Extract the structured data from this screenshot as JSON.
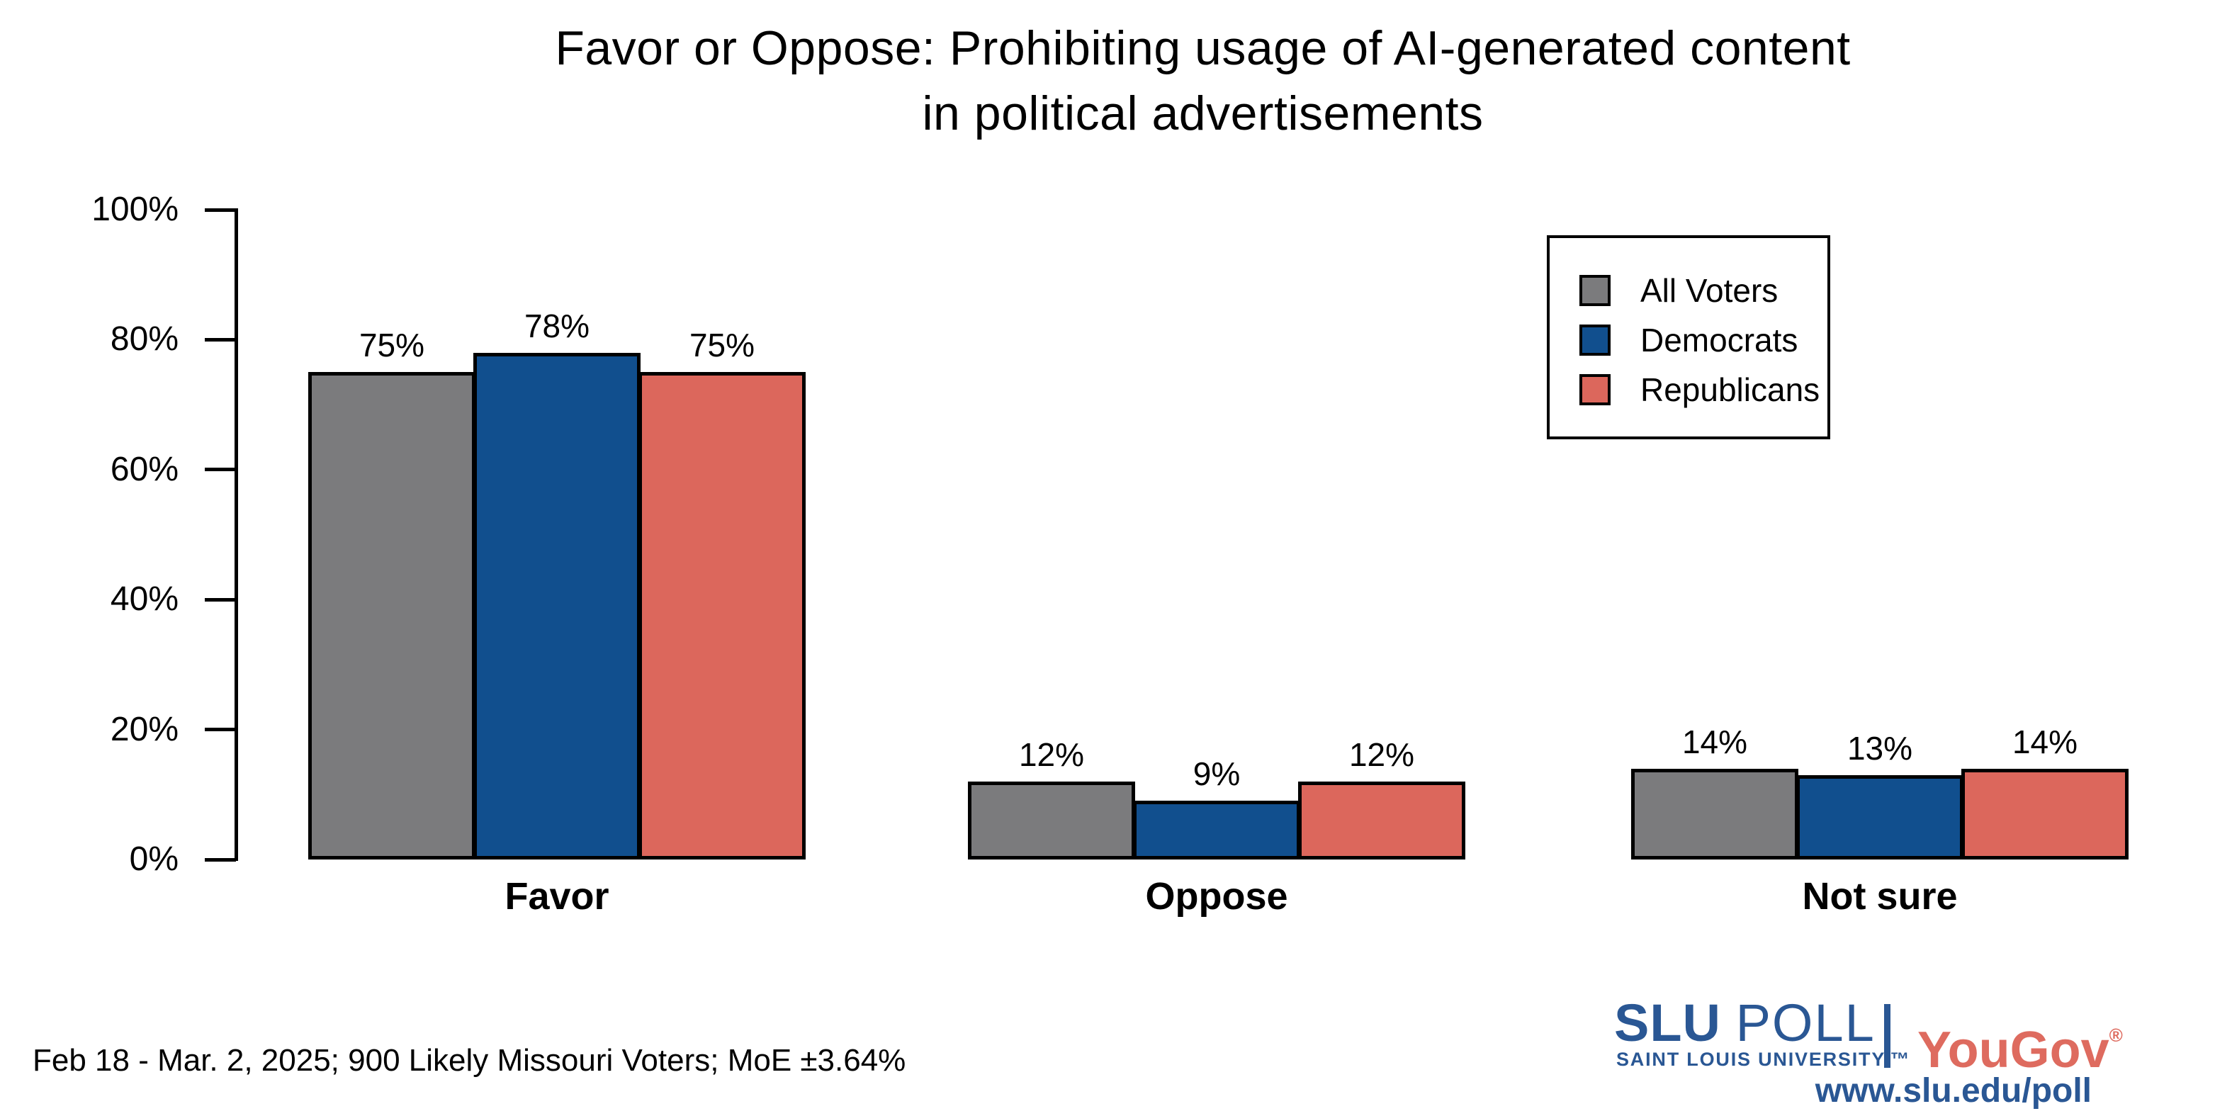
{
  "title": {
    "line1": "Favor or Oppose: Prohibiting usage of AI-generated content",
    "line2": "in political advertisements"
  },
  "chart_data": {
    "type": "bar",
    "categories": [
      "Favor",
      "Oppose",
      "Not sure"
    ],
    "series": [
      {
        "name": "All Voters",
        "color": "#7B7B7D",
        "values": [
          75,
          12,
          14
        ]
      },
      {
        "name": "Democrats",
        "color": "#114F8E",
        "values": [
          78,
          9,
          13
        ]
      },
      {
        "name": "Republicans",
        "color": "#DC675C",
        "values": [
          75,
          12,
          14
        ]
      }
    ],
    "value_suffix": "%",
    "bar_labels": true,
    "title": "Favor or Oppose: Prohibiting usage of AI-generated content in political advertisements",
    "xlabel": "",
    "ylabel": "",
    "ylim": [
      0,
      100
    ],
    "yticks": [
      "0%",
      "20%",
      "40%",
      "60%",
      "80%",
      "100%"
    ],
    "grid": false,
    "legend_position": "top-right",
    "bar_outline_color": "#000000"
  },
  "footer": {
    "note": "Feb 18 - Mar. 2, 2025; 900 Likely Missouri Voters; MoE ±3.64%"
  },
  "branding": {
    "slu": "SLU",
    "poll": "POLL",
    "slu_subtitle": "SAINT LOUIS UNIVERSITY.™",
    "yougov": "YouGov",
    "registered_mark": "®",
    "url": "www.slu.edu/poll",
    "slu_color": "#2A5794",
    "yougov_color": "#DE6B5F"
  }
}
